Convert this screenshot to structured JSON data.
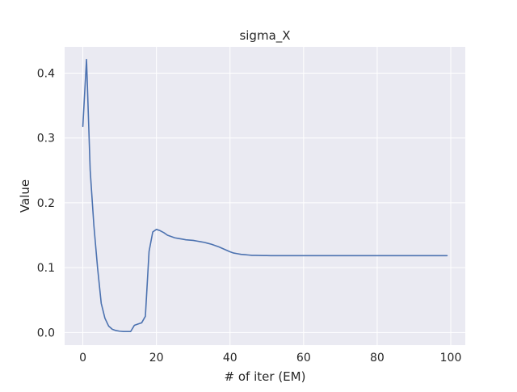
{
  "chart_data": {
    "type": "line",
    "title": "sigma_X",
    "xlabel": "# of iter (EM)",
    "ylabel": "Value",
    "xlim": [
      -4.95,
      103.95
    ],
    "ylim": [
      -0.0195,
      0.4405
    ],
    "xticks": [
      0,
      20,
      40,
      60,
      80,
      100
    ],
    "xtick_labels": [
      "0",
      "20",
      "40",
      "60",
      "80",
      "100"
    ],
    "yticks": [
      0.0,
      0.1,
      0.2,
      0.3,
      0.4
    ],
    "ytick_labels": [
      "0.0",
      "0.1",
      "0.2",
      "0.3",
      "0.4"
    ],
    "grid": true,
    "background": "#eaeaf2",
    "grid_color": "#ffffff",
    "series": [
      {
        "color": "#4c72b0",
        "x": [
          0,
          1,
          2,
          3,
          4,
          5,
          6,
          7,
          8,
          9,
          10,
          11,
          12,
          13,
          14,
          15,
          16,
          17,
          18,
          19,
          20,
          21,
          22,
          23,
          24,
          25,
          26,
          27,
          28,
          29,
          30,
          31,
          32,
          33,
          34,
          35,
          36,
          37,
          38,
          39,
          40,
          41,
          42,
          43,
          44,
          45,
          46,
          47,
          48,
          49,
          50,
          51,
          52,
          53,
          54,
          55,
          56,
          57,
          58,
          59,
          60,
          61,
          62,
          63,
          64,
          65,
          66,
          67,
          68,
          69,
          70,
          71,
          72,
          73,
          74,
          75,
          76,
          77,
          78,
          79,
          80,
          81,
          82,
          83,
          84,
          85,
          86,
          87,
          88,
          89,
          90,
          91,
          92,
          93,
          94,
          95,
          96,
          97,
          98,
          99
        ],
        "y": [
          0.318,
          0.421,
          0.25,
          0.165,
          0.1,
          0.045,
          0.022,
          0.01,
          0.005,
          0.003,
          0.002,
          0.0015,
          0.0015,
          0.0015,
          0.011,
          0.013,
          0.015,
          0.025,
          0.125,
          0.155,
          0.159,
          0.157,
          0.154,
          0.15,
          0.148,
          0.146,
          0.145,
          0.144,
          0.143,
          0.1425,
          0.142,
          0.141,
          0.14,
          0.139,
          0.1375,
          0.136,
          0.134,
          0.132,
          0.1295,
          0.127,
          0.1245,
          0.1225,
          0.1215,
          0.1205,
          0.12,
          0.1195,
          0.119,
          0.119,
          0.1188,
          0.1187,
          0.1186,
          0.1185,
          0.1185,
          0.1185,
          0.1185,
          0.1185,
          0.1185,
          0.1185,
          0.1185,
          0.1185,
          0.1185,
          0.1185,
          0.1185,
          0.1185,
          0.1185,
          0.1185,
          0.1185,
          0.1185,
          0.1185,
          0.1185,
          0.1185,
          0.1185,
          0.1185,
          0.1185,
          0.1185,
          0.1185,
          0.1185,
          0.1185,
          0.1185,
          0.1185,
          0.1185,
          0.1185,
          0.1185,
          0.1185,
          0.1185,
          0.1185,
          0.1185,
          0.1185,
          0.1185,
          0.1185,
          0.1185,
          0.1185,
          0.1185,
          0.1185,
          0.1185,
          0.1185,
          0.1185,
          0.1185,
          0.1185,
          0.1185
        ]
      }
    ]
  }
}
